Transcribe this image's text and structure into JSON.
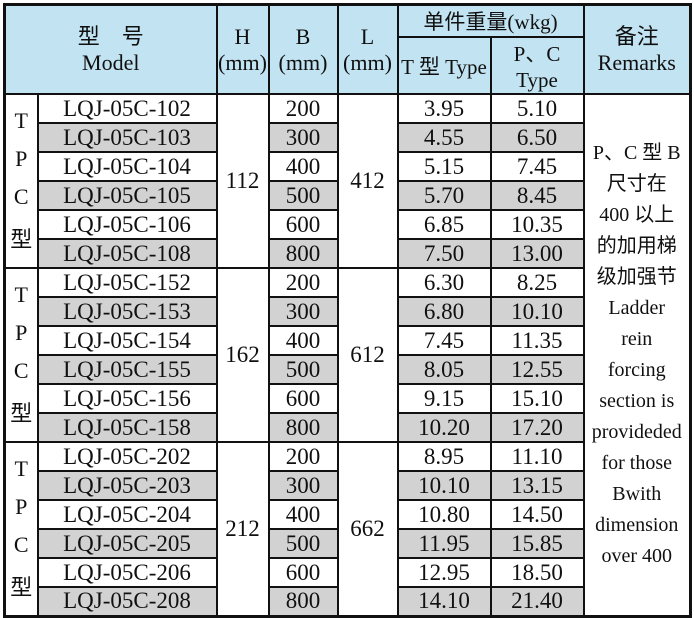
{
  "table": {
    "header": {
      "model_cn": "型　号",
      "model_en": "Model",
      "h": {
        "label": "H",
        "unit": "(mm)"
      },
      "b": {
        "label": "B",
        "unit": "(mm)"
      },
      "l": {
        "label": "L",
        "unit": "(mm)"
      },
      "weight": "单件重量(wkg)",
      "t_type": "T 型 Type",
      "pc_type": "P、C Type",
      "remarks_cn": "备注",
      "remarks_en": "Remarks"
    },
    "groups": [
      {
        "label": [
          "T",
          "P",
          "C",
          "型"
        ],
        "h": "112",
        "l": "412",
        "rows": [
          {
            "model": "LQJ-05C-102",
            "b": "200",
            "t_weight": "3.95",
            "pc_weight": "5.10"
          },
          {
            "model": "LQJ-05C-103",
            "b": "300",
            "t_weight": "4.55",
            "pc_weight": "6.50"
          },
          {
            "model": "LQJ-05C-104",
            "b": "400",
            "t_weight": "5.15",
            "pc_weight": "7.45"
          },
          {
            "model": "LQJ-05C-105",
            "b": "500",
            "t_weight": "5.70",
            "pc_weight": "8.45"
          },
          {
            "model": "LQJ-05C-106",
            "b": "600",
            "t_weight": "6.85",
            "pc_weight": "10.35"
          },
          {
            "model": "LQJ-05C-108",
            "b": "800",
            "t_weight": "7.50",
            "pc_weight": "13.00"
          }
        ]
      },
      {
        "label": [
          "T",
          "P",
          "C",
          "型"
        ],
        "h": "162",
        "l": "612",
        "rows": [
          {
            "model": "LQJ-05C-152",
            "b": "200",
            "t_weight": "6.30",
            "pc_weight": "8.25"
          },
          {
            "model": "LQJ-05C-153",
            "b": "300",
            "t_weight": "6.80",
            "pc_weight": "10.10"
          },
          {
            "model": "LQJ-05C-154",
            "b": "400",
            "t_weight": "7.45",
            "pc_weight": "11.35"
          },
          {
            "model": "LQJ-05C-155",
            "b": "500",
            "t_weight": "8.05",
            "pc_weight": "12.55"
          },
          {
            "model": "LQJ-05C-156",
            "b": "600",
            "t_weight": "9.15",
            "pc_weight": "15.10"
          },
          {
            "model": "LQJ-05C-158",
            "b": "800",
            "t_weight": "10.20",
            "pc_weight": "17.20"
          }
        ]
      },
      {
        "label": [
          "T",
          "P",
          "C",
          "型"
        ],
        "h": "212",
        "l": "662",
        "rows": [
          {
            "model": "LQJ-05C-202",
            "b": "200",
            "t_weight": "8.95",
            "pc_weight": "11.10"
          },
          {
            "model": "LQJ-05C-203",
            "b": "300",
            "t_weight": "10.10",
            "pc_weight": "13.15"
          },
          {
            "model": "LQJ-05C-204",
            "b": "400",
            "t_weight": "10.80",
            "pc_weight": "14.50"
          },
          {
            "model": "LQJ-05C-205",
            "b": "500",
            "t_weight": "11.95",
            "pc_weight": "15.85"
          },
          {
            "model": "LQJ-05C-206",
            "b": "600",
            "t_weight": "12.95",
            "pc_weight": "18.50"
          },
          {
            "model": "LQJ-05C-208",
            "b": "800",
            "t_weight": "14.10",
            "pc_weight": "21.40"
          }
        ]
      }
    ],
    "remarks": "P、C 型 B\n尺寸在\n400 以上\n的加用梯\n级加强节\nLadder\nrein\nforcing\nsection is\nprovideded\nfor those\nBwith\ndimension\nover 400"
  },
  "colors": {
    "header_bg": "#c2e3f1",
    "stripe_bg": "#d2d2d2",
    "border": "#111111",
    "text": "#101010"
  }
}
